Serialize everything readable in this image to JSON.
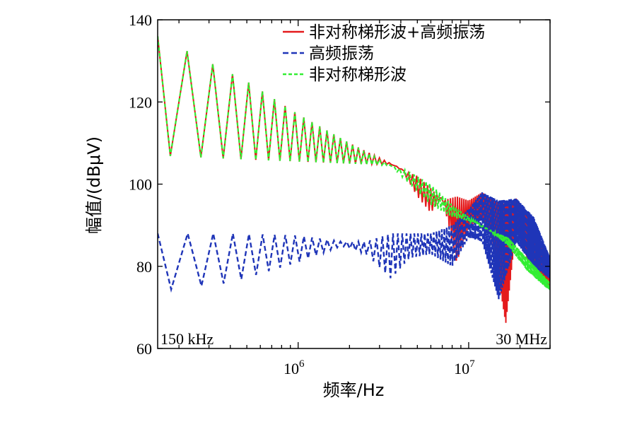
{
  "chart_data": {
    "type": "line",
    "title": "",
    "xlabel": "频率/Hz",
    "ylabel": "幅值/(dBμV)",
    "x_scale": "log",
    "xlim": [
      150000,
      30000000
    ],
    "ylim": [
      60,
      140
    ],
    "y_ticks": [
      60,
      80,
      100,
      120,
      140
    ],
    "x_ticks": [
      {
        "base": "10",
        "exp": "6",
        "value": 1000000
      },
      {
        "base": "10",
        "exp": "7",
        "value": 10000000
      }
    ],
    "corner_labels": {
      "left": "150 kHz",
      "right": "30 MHz"
    },
    "legend_position": "top-right",
    "series": [
      {
        "name": "非对称梯形波+高频振荡",
        "color": "#e41a1c",
        "style": "solid",
        "description": "sawtooth-like ripple 132→105 dBμV, then broadband lobes; deep notch near 16 MHz",
        "upper": {
          "x": [
            150000,
            500000,
            1000000,
            2000000,
            3500000,
            4000000,
            5000000,
            6000000,
            7000000,
            8500000,
            10000000,
            12000000,
            14000000,
            17000000,
            19000000,
            22000000,
            26000000,
            30000000
          ],
          "y": [
            136,
            125,
            117,
            110,
            105,
            103.5,
            102,
            99,
            96,
            97,
            96,
            98,
            96,
            95,
            96.5,
            93,
            86,
            80
          ]
        },
        "lower": {
          "x": [
            150000,
            500000,
            1000000,
            2000000,
            3500000,
            4000000,
            5000000,
            6000000,
            7000000,
            8500000,
            10000000,
            12000000,
            14000000,
            16500000,
            19000000,
            22000000,
            26000000,
            30000000
          ],
          "y": [
            107,
            106,
            105.5,
            105,
            104.8,
            104,
            97,
            93,
            97,
            81,
            89,
            92,
            85,
            66,
            90,
            82,
            78,
            75
          ]
        }
      },
      {
        "name": "高频振荡",
        "color": "#1f35b8",
        "style": "dashed",
        "description": "zigzag 76-88 dBμV converging at ~85.5 around 1.5-2 MHz, then lobed envelope",
        "upper": {
          "x": [
            150000,
            400000,
            1000000,
            1800000,
            2500000,
            3500000,
            4500000,
            6000000,
            8000000,
            10000000,
            12000000,
            15000000,
            19000000,
            24000000,
            30000000
          ],
          "y": [
            88,
            88,
            87.5,
            86,
            86,
            88,
            88,
            88,
            90,
            94,
            98,
            96,
            96.5,
            92,
            82
          ]
        },
        "lower": {
          "x": [
            150000,
            400000,
            1000000,
            1800000,
            2500000,
            3500000,
            4500000,
            6000000,
            8000000,
            10000000,
            12000000,
            15000000,
            19000000,
            24000000,
            30000000
          ],
          "y": [
            74,
            76,
            81,
            85,
            83,
            77,
            82,
            83,
            80,
            87,
            86,
            72,
            86,
            80,
            77
          ]
        }
      },
      {
        "name": "非对称梯形波",
        "color": "#33ee33",
        "style": "dashed",
        "description": "tracks red ripple to ~3.5 MHz, then narrowing band falling to ~75 dBμV at 30 MHz",
        "upper": {
          "x": [
            150000,
            500000,
            1000000,
            2000000,
            3500000,
            4500000,
            6000000,
            8000000,
            10000000,
            13000000,
            17000000,
            22000000,
            30000000
          ],
          "y": [
            136,
            125,
            117,
            110,
            104.5,
            103,
            100,
            95,
            92,
            89,
            87,
            82,
            76
          ]
        },
        "lower": {
          "x": [
            150000,
            500000,
            1000000,
            2000000,
            3500000,
            4500000,
            6000000,
            8000000,
            10000000,
            13000000,
            17000000,
            22000000,
            30000000
          ],
          "y": [
            107,
            106,
            105.5,
            105,
            104.5,
            100,
            95,
            92,
            91,
            89,
            85,
            79,
            74
          ]
        }
      }
    ]
  }
}
